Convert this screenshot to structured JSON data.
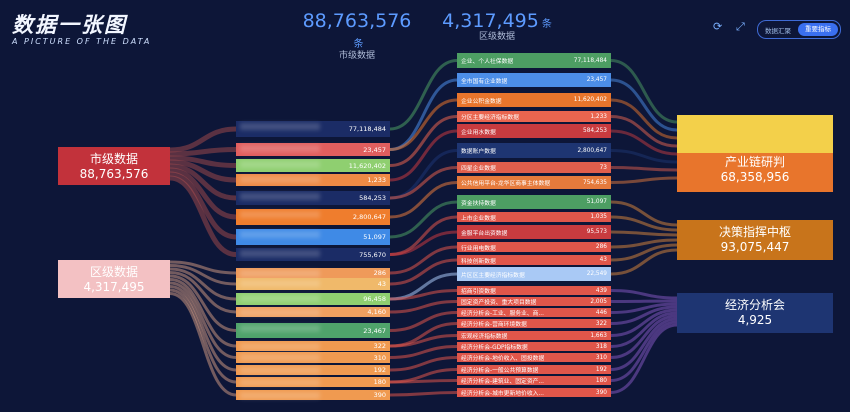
{
  "header": {
    "title": "数据一张图",
    "subtitle": "A PICTURE OF THE DATA"
  },
  "stats": [
    {
      "value": "88,763,576",
      "unit": "条",
      "label": "市级数据"
    },
    {
      "value": "4,317,495",
      "unit": "条",
      "label": "区级数据"
    }
  ],
  "toolbar": {
    "refresh_icon": "refresh-icon",
    "fullscreen_icon": "fullscreen-icon",
    "toggle": [
      "数据汇聚",
      "重要指标"
    ],
    "active": 1
  },
  "sources": [
    {
      "title": "市级数据",
      "value": "88,763,576",
      "color": "#c2323b"
    },
    {
      "title": "区级数据",
      "value": "4,317,495",
      "color": "#f3c1c3"
    }
  ],
  "middle_values": [
    "77,118,484",
    "23,457",
    "11,620,402",
    "1,233",
    "584,253",
    "2,800,647",
    "51,097",
    "755,670",
    "286",
    "43",
    "96,458",
    "4,160",
    "23,467",
    "322",
    "310",
    "192",
    "180",
    "390"
  ],
  "middle_colors": [
    "#1b2c66",
    "#e05e5e",
    "#8fcf70",
    "#ee8a45",
    "#1b2c66",
    "#ef7d2d",
    "#3f8ae6",
    "#1b2c66",
    "#ef9a5a",
    "#f0b96a",
    "#8fcf70",
    "#f0a060",
    "#4fa36b",
    "#f09a50",
    "#f09a50",
    "#f09a50",
    "#f09a50",
    "#f09a50"
  ],
  "categories": [
    {
      "label": "企业、个人社保数据",
      "value": "77,118,484",
      "color": "#4d9e63"
    },
    {
      "label": "全市国有企业数据",
      "value": "23,457",
      "color": "#4c8ee8"
    },
    {
      "label": "企业公积金数据",
      "value": "11,620,402",
      "color": "#e8752c"
    },
    {
      "label": "分区主要经济指标数据",
      "value": "1,233",
      "color": "#e9654f"
    },
    {
      "label": "企业用水数据",
      "value": "584,253",
      "color": "#c83b3f"
    },
    {
      "label": "数据账户数据",
      "value": "2,800,647",
      "color": "#1e3572"
    },
    {
      "label": "四星企业数据",
      "value": "73",
      "color": "#e05e4c"
    },
    {
      "label": "公共信用平台-龙华区商事主体数据",
      "value": "754,635",
      "color": "#e57a3c"
    },
    {
      "label": "资金扶持数据",
      "value": "51,097",
      "color": "#4d9e63"
    },
    {
      "label": "上市企业数据",
      "value": "1,035",
      "color": "#e0564a"
    },
    {
      "label": "金服平台出资数据",
      "value": "95,573",
      "color": "#c83b3f"
    },
    {
      "label": "行业用电数据",
      "value": "286",
      "color": "#e0564a"
    },
    {
      "label": "科技创新数据",
      "value": "43",
      "color": "#e0564a"
    },
    {
      "label": "片区区主要经济指标数据",
      "value": "22,549",
      "color": "#a9c9f5"
    },
    {
      "label": "招商引资数据",
      "value": "439",
      "color": "#e0564a"
    },
    {
      "label": "固定资产投资、重大项目数据",
      "value": "2,005",
      "color": "#e0564a"
    },
    {
      "label": "经济分析会-工业、服务业、商...",
      "value": "446",
      "color": "#e0564a"
    },
    {
      "label": "经济分析会-营商环境数据",
      "value": "322",
      "color": "#e0564a"
    },
    {
      "label": "宏观经济指标数据",
      "value": "1,663",
      "color": "#e0564a"
    },
    {
      "label": "经济分析会-GDP指标数据",
      "value": "318",
      "color": "#e0564a"
    },
    {
      "label": "经济分析会-地价收入、固投数据",
      "value": "310",
      "color": "#e0564a"
    },
    {
      "label": "经济分析会-一般公共预算数据",
      "value": "192",
      "color": "#e0564a"
    },
    {
      "label": "经济分析会-建筑业、固定资产...",
      "value": "180",
      "color": "#e0564a"
    },
    {
      "label": "经济分析会-城市更新地价收入...",
      "value": "390",
      "color": "#e0564a"
    }
  ],
  "destinations": [
    {
      "title": "产业链研判",
      "value": "68,358,956",
      "color": "#e8752c",
      "top_color": "#f3d04a"
    },
    {
      "title": "决策指挥中枢",
      "value": "93,075,447",
      "color": "#e08020"
    },
    {
      "title": "经济分析会",
      "value": "4,925",
      "color": "#1e3572"
    }
  ]
}
